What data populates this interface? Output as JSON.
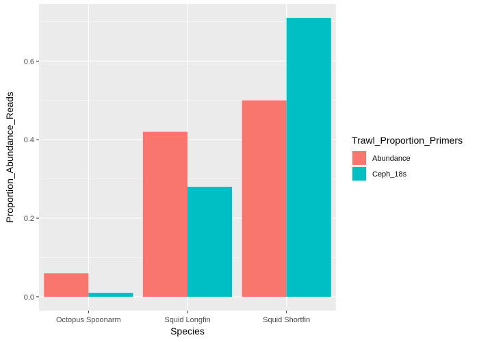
{
  "chart_data": {
    "type": "bar",
    "categories": [
      "Octopus Spoonarm",
      "Squid Longfin",
      "Squid Shortfin"
    ],
    "series": [
      {
        "name": "Abundance",
        "values": [
          0.06,
          0.42,
          0.5
        ],
        "color": "#F8766D"
      },
      {
        "name": "Ceph_18s",
        "values": [
          0.01,
          0.28,
          0.71
        ],
        "color": "#00BFC4"
      }
    ],
    "xlabel": "Species",
    "ylabel": "Proportion_Abundance_Reads",
    "ylim": [
      -0.035,
      0.745
    ],
    "yticks": [
      0.0,
      0.2,
      0.4,
      0.6
    ],
    "ytick_labels": [
      "0.0",
      "0.2",
      "0.4",
      "0.6"
    ],
    "legend_title": "Trawl_Proportion_Primers",
    "legend_position": "right",
    "grid": true,
    "panel_background": "#EBEBEB",
    "grid_color": "#FFFFFF"
  }
}
